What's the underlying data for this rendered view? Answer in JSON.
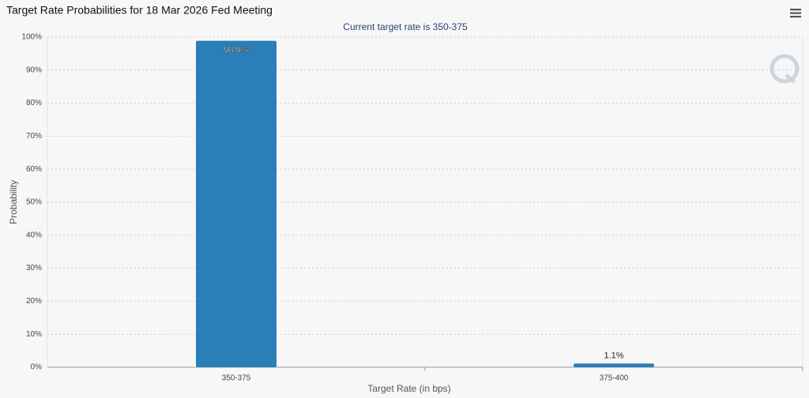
{
  "chart_data": {
    "type": "bar",
    "title": "Target Rate Probabilities for 18 Mar 2026 Fed Meeting",
    "subtitle": "Current target rate is 350-375",
    "x_label": "Target Rate (in bps)",
    "y_label": "Probability",
    "categories": [
      "350-375",
      "375-400"
    ],
    "values": [
      98.9,
      1.1
    ],
    "value_labels": [
      "98.9%",
      "1.1%"
    ],
    "color": "#2a7fb8",
    "ylim": [
      0,
      100
    ],
    "yticks": [
      {
        "value": 0,
        "label": "0%"
      },
      {
        "value": 10,
        "label": "10%"
      },
      {
        "value": 20,
        "label": "20%"
      },
      {
        "value": 30,
        "label": "30%"
      },
      {
        "value": 40,
        "label": "40%"
      },
      {
        "value": 50,
        "label": "50%"
      },
      {
        "value": 60,
        "label": "60%"
      },
      {
        "value": 70,
        "label": "70%"
      },
      {
        "value": 80,
        "label": "80%"
      },
      {
        "value": 90,
        "label": "90%"
      },
      {
        "value": 100,
        "label": "100%"
      }
    ],
    "grid": true
  }
}
